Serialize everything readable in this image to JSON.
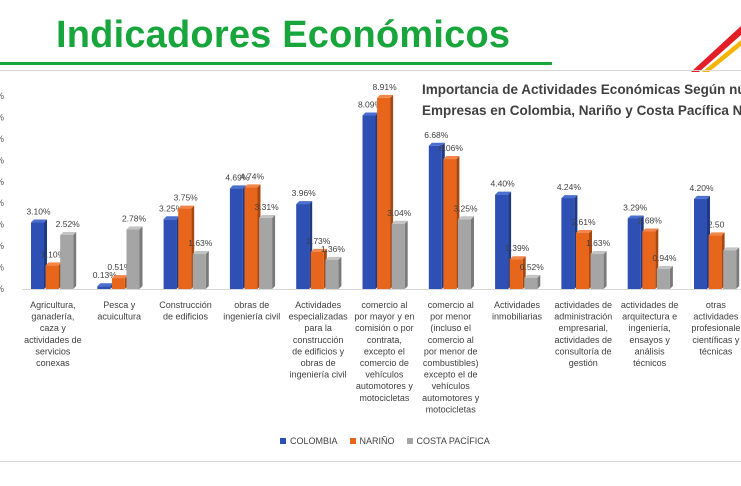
{
  "slide": {
    "title": "Indicadores Económicos"
  },
  "colors": {
    "title_green": "#17a53c",
    "colombia": "#2e4fb3",
    "narino": "#e8661c",
    "costa": "#a5a5a5"
  },
  "logo": {
    "icon": "red-yellow-chevron-logo"
  },
  "chart_data": {
    "type": "bar",
    "title_lines": [
      "Importancia de Actividades Económicas Según nú",
      "Empresas en Colombia, Nariño y Costa Pacífica N"
    ],
    "categories": [
      [
        "Agricultura,",
        "ganadería,",
        "caza y",
        "actividades de",
        "servicios",
        "conexas"
      ],
      [
        "Pesca y",
        "acuicultura"
      ],
      [
        "Construcción",
        "de edificios"
      ],
      [
        "obras de",
        "ingeniería civil"
      ],
      [
        "Actividades",
        "especializadas",
        "para la",
        "construcción",
        "de edificios y",
        "obras de",
        "ingeniería civil"
      ],
      [
        "comercio al",
        "por mayor y en",
        "comisión o por",
        "contrata,",
        "excepto el",
        "comercio de",
        "vehículos",
        "automotores y",
        "motocicletas"
      ],
      [
        "comercio al",
        "por menor",
        "(incluso el",
        "comercio al",
        "por menor de",
        "combustibles)",
        "excepto el de",
        "vehículos",
        "automotores y",
        "motocicletas"
      ],
      [
        "Actividades",
        "inmobiliarias"
      ],
      [
        "actividades de",
        "administración",
        "empresarial,",
        "actividades de",
        "consultoría de",
        "gestión"
      ],
      [
        "actividades de",
        "arquitectura e",
        "ingeniería,",
        "ensayos y",
        "análisis",
        "técnicos"
      ],
      [
        "otras",
        "actividades",
        "profesionale",
        "científicas y",
        "técnicas"
      ]
    ],
    "series": [
      {
        "name": "COLOMBIA",
        "values": [
          3.1,
          0.13,
          3.25,
          4.69,
          3.96,
          8.09,
          6.68,
          4.4,
          4.24,
          3.29,
          4.2
        ],
        "labels": [
          "3.10%",
          "0.13%",
          "3.25%",
          "4.69%",
          "3.96%",
          "8.09%",
          "6.68%",
          "4.40%",
          "4.24%",
          "3.29%",
          "4.20%"
        ]
      },
      {
        "name": "NARIÑO",
        "values": [
          1.1,
          0.51,
          3.75,
          4.74,
          1.73,
          8.91,
          6.06,
          1.39,
          2.61,
          2.68,
          2.5
        ],
        "labels": [
          "1.10%",
          "0.51%",
          "3.75%",
          "4.74%",
          "1.73%",
          "8.91%",
          "6.06%",
          "1.39%",
          "2.61%",
          "2.68%",
          "2.50"
        ]
      },
      {
        "name": "COSTA PACÍFICA",
        "values": [
          2.52,
          2.78,
          1.63,
          3.31,
          1.36,
          3.04,
          3.25,
          0.52,
          1.63,
          0.94,
          1.8
        ],
        "labels": [
          "2.52%",
          "2.78%",
          "1.63%",
          "3.31%",
          "1.36%",
          "3.04%",
          "3.25%",
          "0.52%",
          "1.63%",
          "0.94%",
          ""
        ]
      }
    ],
    "ylim": [
      0,
      9
    ],
    "ytick_labels": [
      "%",
      "%",
      "%",
      "%",
      "%",
      "%",
      "%",
      "%",
      "%",
      "%"
    ],
    "legend": "bottom",
    "grid": false
  }
}
